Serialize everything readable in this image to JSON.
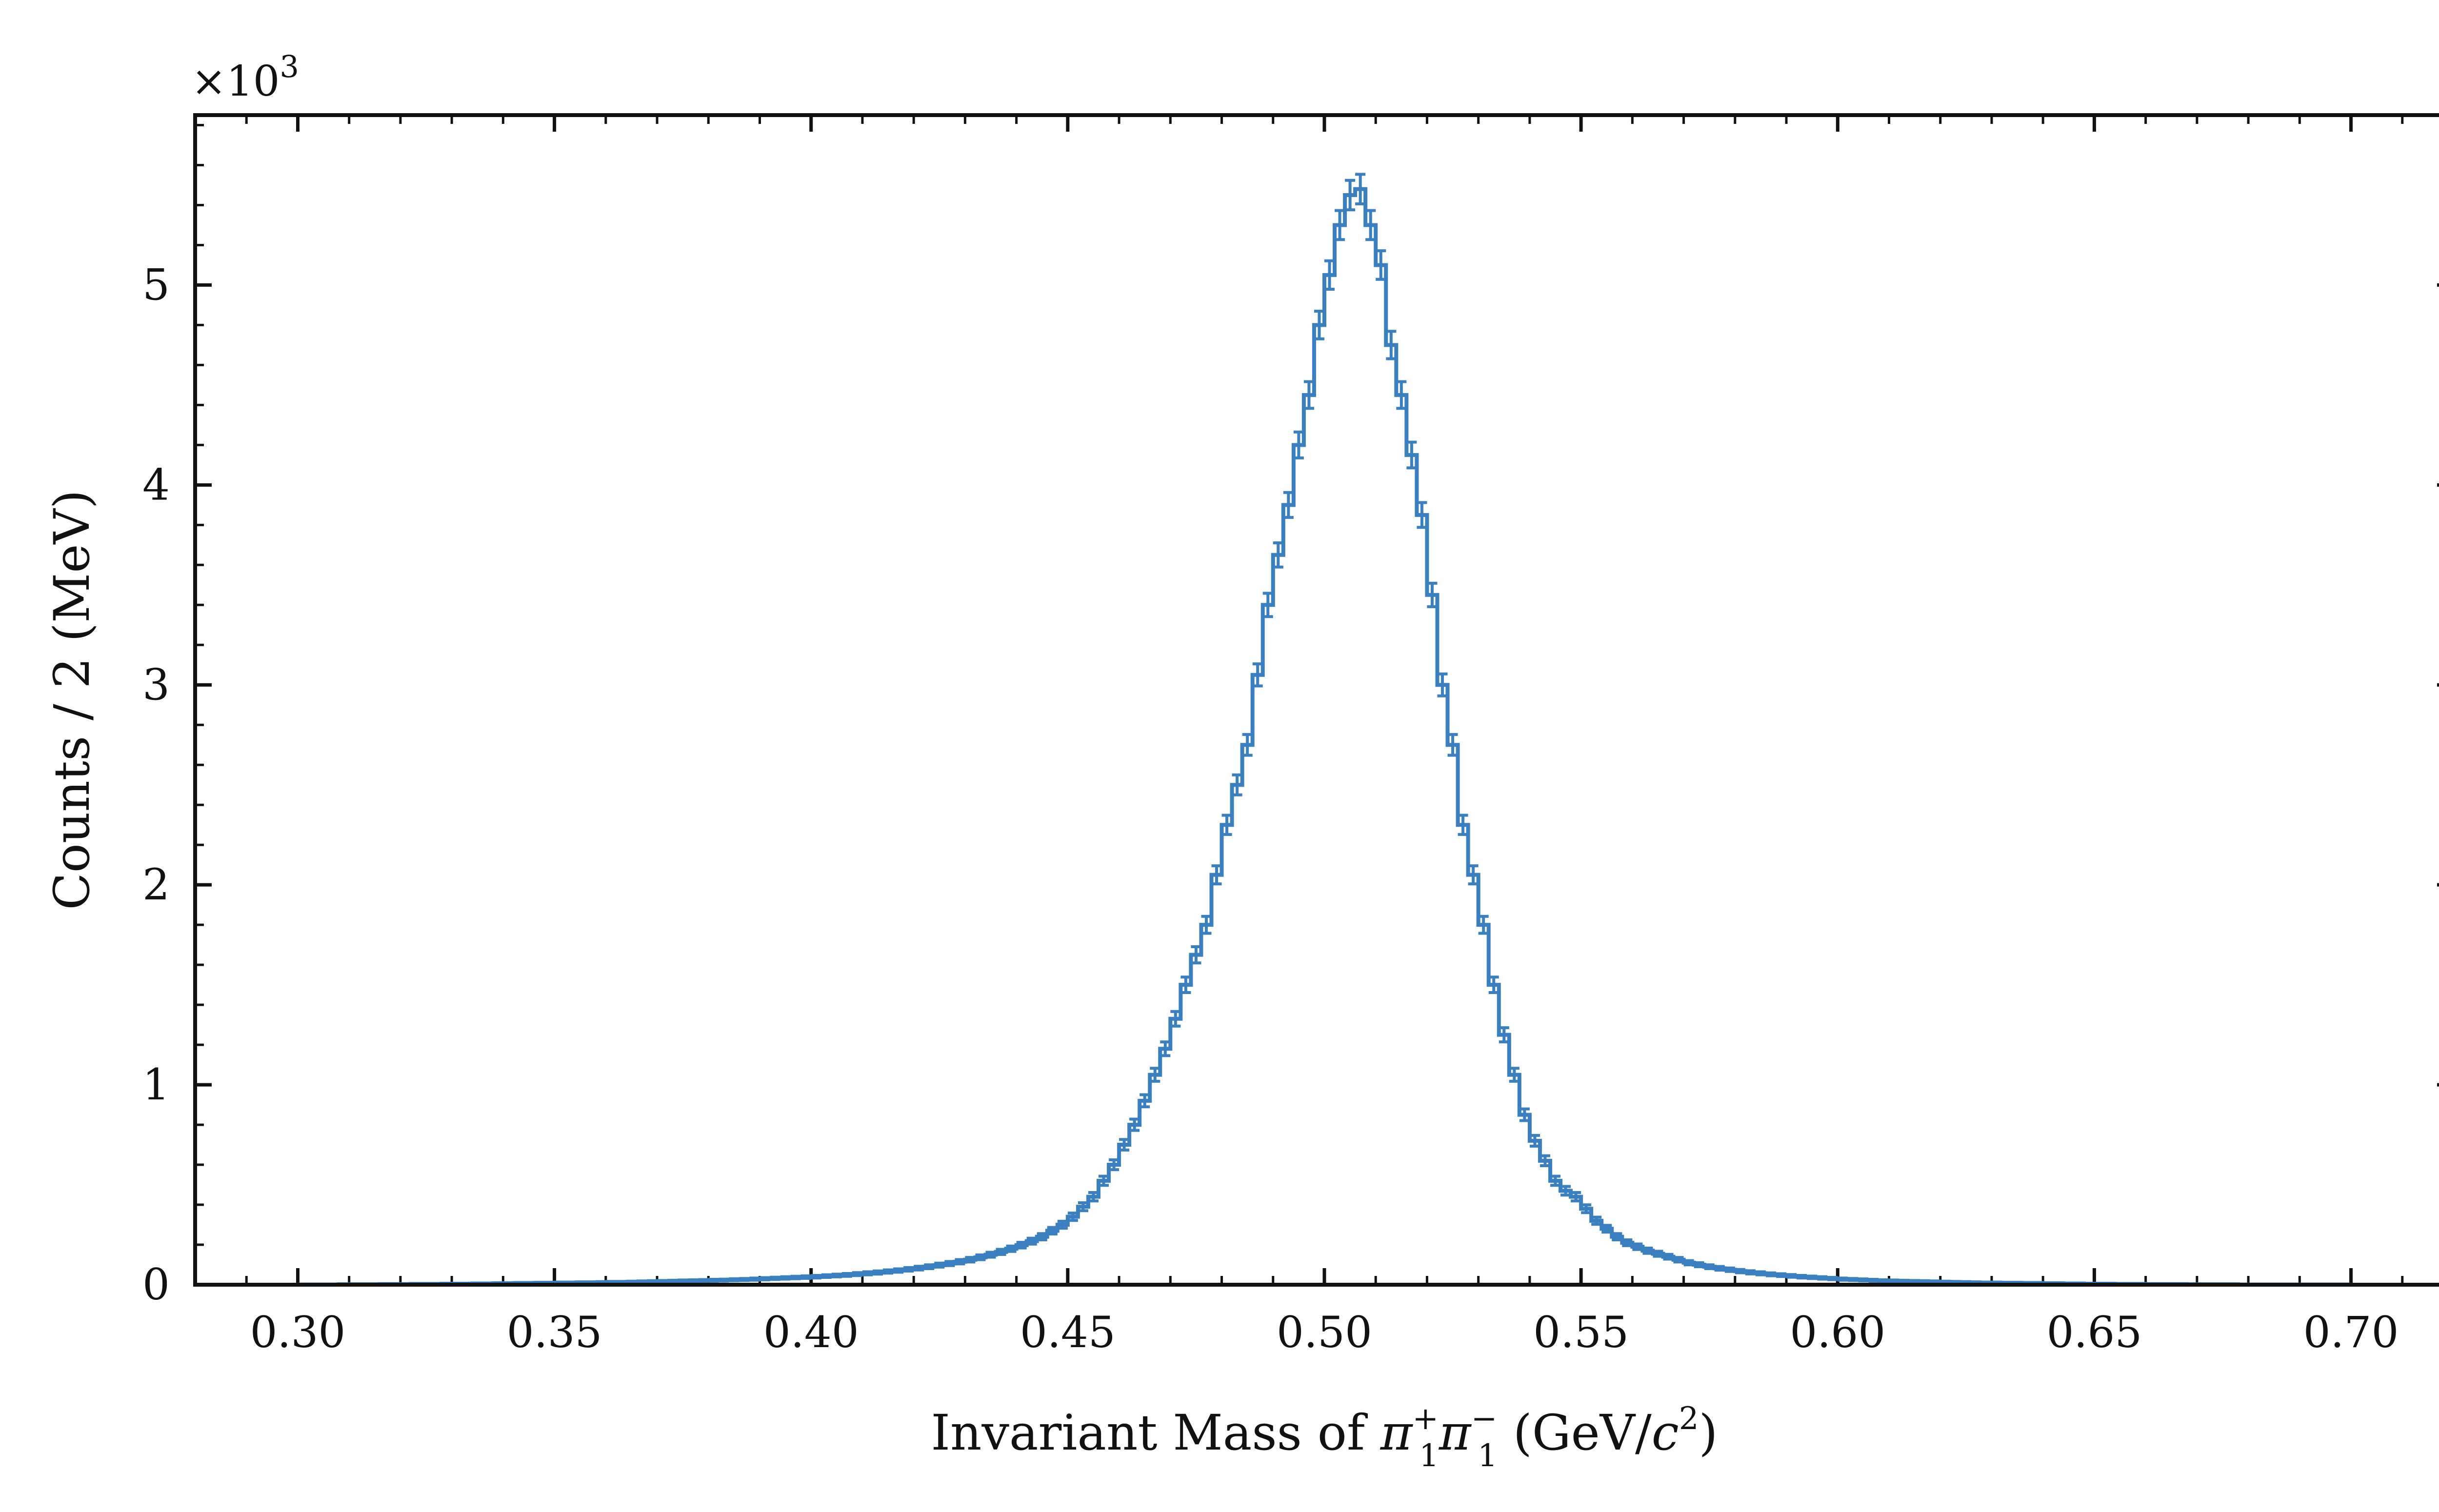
{
  "chart_data": {
    "type": "histogram",
    "xlabel": {
      "prefix": "Invariant Mass of ",
      "pi_plus_sup": "+",
      "pi_plus_sub": "1",
      "pi_minus_sup": "−",
      "pi_minus_sub": "1",
      "units": " (GeV/",
      "c_sup": "2",
      "units_close": ")"
    },
    "ylabel": "Counts / 2 (MeV)",
    "y_multiplier": "×10",
    "y_multiplier_exp": "3",
    "xlim": [
      0.28,
      0.72
    ],
    "ylim": [
      0,
      5.85
    ],
    "x_ticks": [
      {
        "value": 0.3,
        "label": "0.30"
      },
      {
        "value": 0.35,
        "label": "0.35"
      },
      {
        "value": 0.4,
        "label": "0.40"
      },
      {
        "value": 0.45,
        "label": "0.45"
      },
      {
        "value": 0.5,
        "label": "0.50"
      },
      {
        "value": 0.55,
        "label": "0.55"
      },
      {
        "value": 0.6,
        "label": "0.60"
      },
      {
        "value": 0.65,
        "label": "0.65"
      },
      {
        "value": 0.7,
        "label": "0.70"
      }
    ],
    "y_ticks": [
      {
        "value": 0,
        "label": "0"
      },
      {
        "value": 1,
        "label": "1"
      },
      {
        "value": 2,
        "label": "2"
      },
      {
        "value": 3,
        "label": "3"
      },
      {
        "value": 4,
        "label": "4"
      },
      {
        "value": 5,
        "label": "5"
      }
    ],
    "x_minor_step": 0.01,
    "y_minor_step": 0.2,
    "series_color": "#3a7fbf",
    "series": [
      {
        "name": "",
        "bin_width": 0.002,
        "x_start": 0.3,
        "values_x1000": [
          0.001,
          0.001,
          0.001,
          0.001,
          0.002,
          0.002,
          0.002,
          0.002,
          0.003,
          0.003,
          0.003,
          0.004,
          0.004,
          0.004,
          0.005,
          0.005,
          0.005,
          0.006,
          0.006,
          0.007,
          0.007,
          0.008,
          0.008,
          0.009,
          0.009,
          0.01,
          0.01,
          0.011,
          0.011,
          0.012,
          0.013,
          0.013,
          0.014,
          0.015,
          0.016,
          0.017,
          0.018,
          0.019,
          0.02,
          0.021,
          0.022,
          0.023,
          0.025,
          0.026,
          0.028,
          0.03,
          0.032,
          0.034,
          0.036,
          0.038,
          0.04,
          0.043,
          0.046,
          0.049,
          0.053,
          0.057,
          0.061,
          0.066,
          0.071,
          0.077,
          0.083,
          0.09,
          0.098,
          0.106,
          0.115,
          0.125,
          0.137,
          0.15,
          0.164,
          0.18,
          0.198,
          0.218,
          0.24,
          0.27,
          0.3,
          0.34,
          0.39,
          0.44,
          0.52,
          0.6,
          0.7,
          0.8,
          0.92,
          1.05,
          1.18,
          1.33,
          1.5,
          1.65,
          1.8,
          2.05,
          2.3,
          2.5,
          2.7,
          3.05,
          3.4,
          3.65,
          3.9,
          4.2,
          4.45,
          4.8,
          5.05,
          5.3,
          5.45,
          5.48,
          5.3,
          5.1,
          4.7,
          4.45,
          4.15,
          3.85,
          3.45,
          3.0,
          2.7,
          2.3,
          2.05,
          1.8,
          1.5,
          1.25,
          1.05,
          0.85,
          0.72,
          0.62,
          0.52,
          0.47,
          0.44,
          0.38,
          0.32,
          0.28,
          0.24,
          0.21,
          0.19,
          0.17,
          0.155,
          0.14,
          0.125,
          0.11,
          0.1,
          0.09,
          0.082,
          0.075,
          0.068,
          0.062,
          0.057,
          0.052,
          0.048,
          0.044,
          0.04,
          0.037,
          0.034,
          0.031,
          0.028,
          0.026,
          0.024,
          0.022,
          0.02,
          0.019,
          0.018,
          0.017,
          0.016,
          0.015,
          0.014,
          0.013,
          0.012,
          0.011,
          0.01,
          0.01,
          0.009,
          0.009,
          0.008,
          0.008,
          0.007,
          0.007,
          0.006,
          0.006,
          0.005,
          0.005,
          0.005,
          0.004,
          0.004,
          0.004,
          0.003,
          0.003,
          0.003,
          0.003,
          0.002,
          0.002,
          0.002,
          0.002,
          0.002,
          0.001,
          0.001,
          0.001,
          0.001,
          0.001,
          0.001,
          0.001,
          0.001,
          0.001,
          0.001,
          0.001
        ]
      }
    ]
  }
}
